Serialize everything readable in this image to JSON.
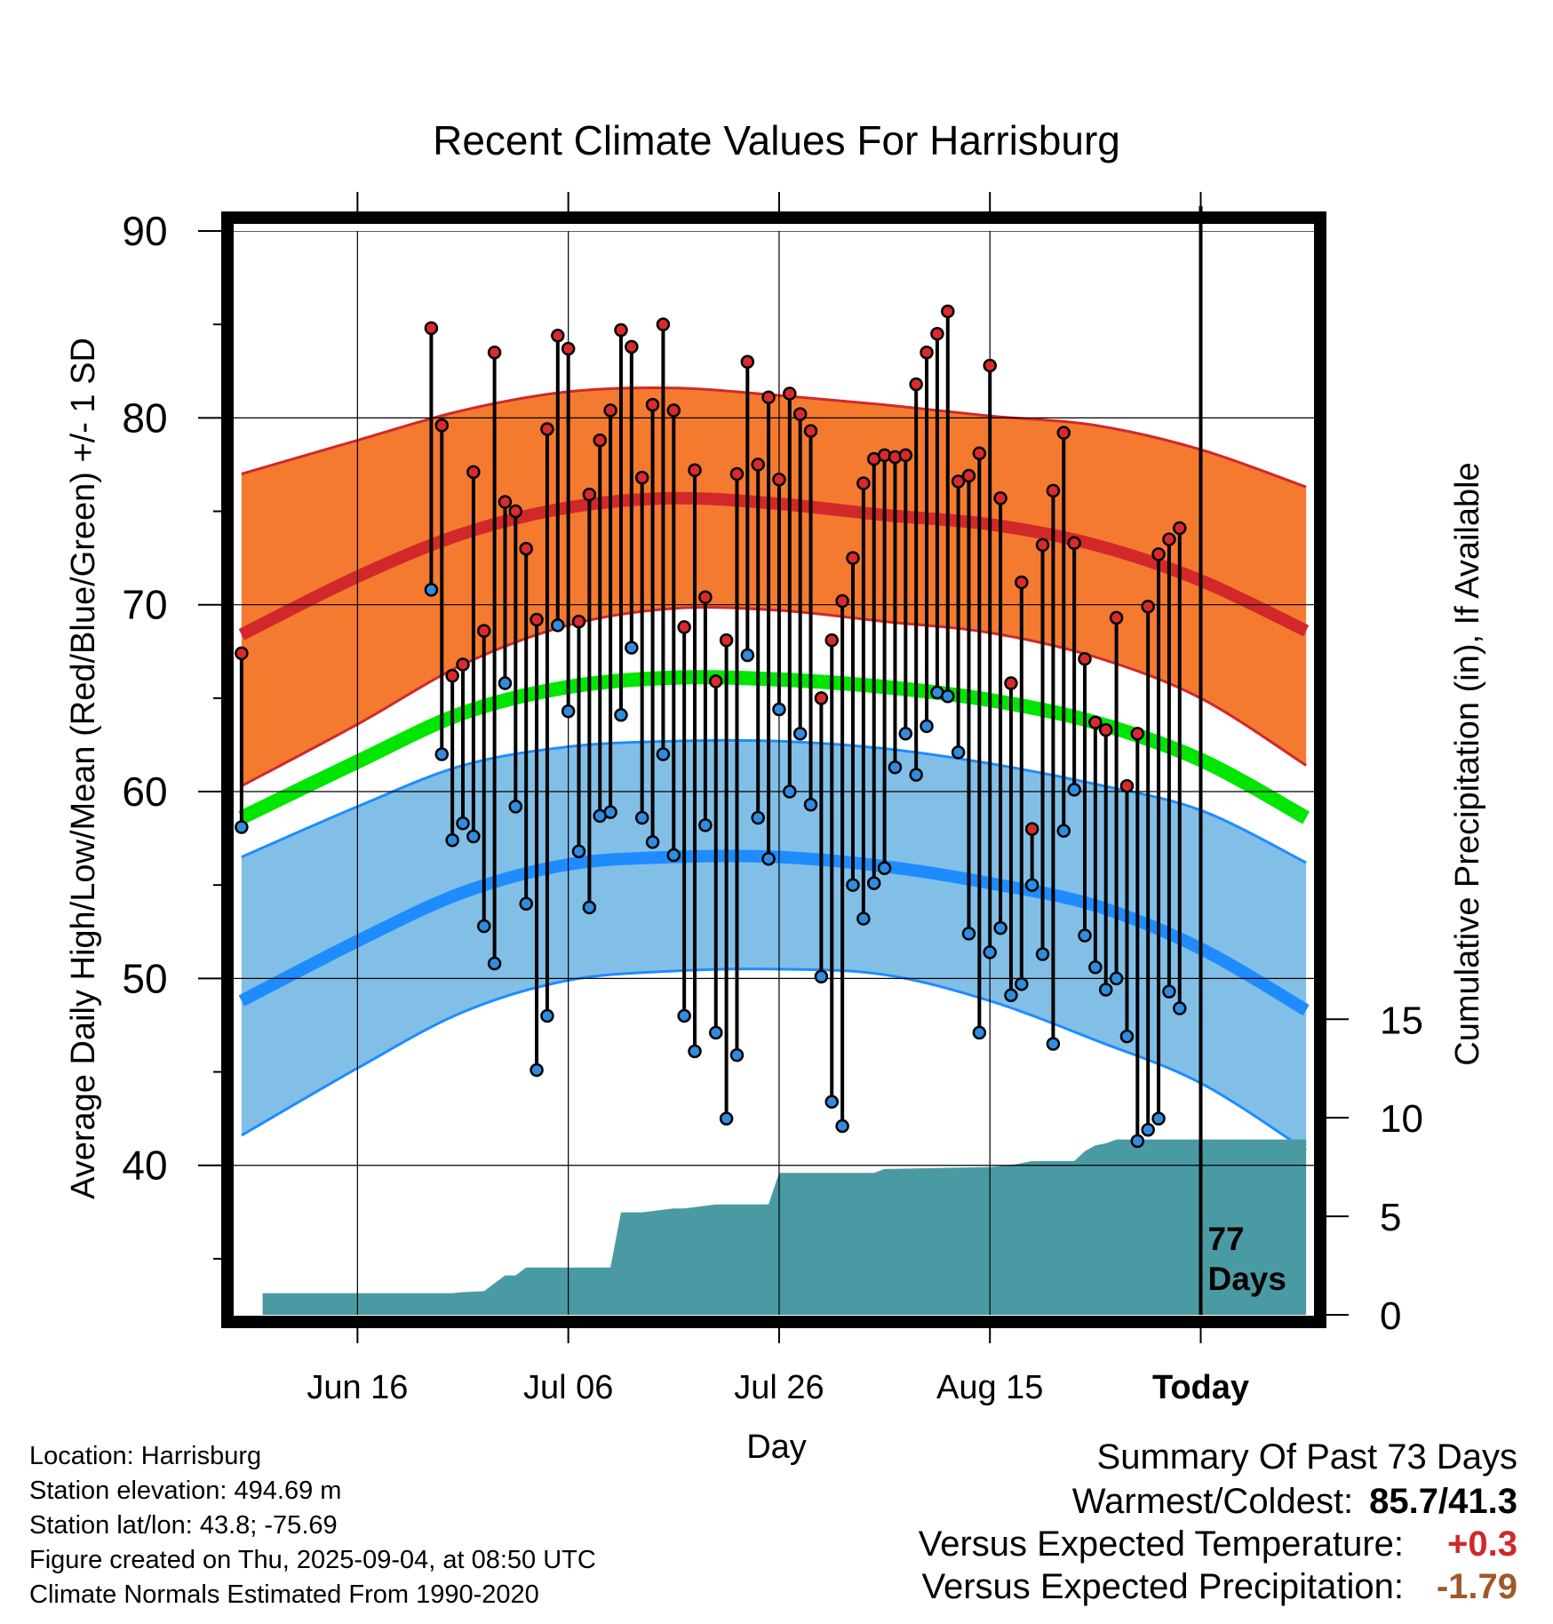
{
  "chart_data": {
    "type": "line",
    "title": "Recent Climate Values For Harrisburg",
    "xlabel": "Day",
    "ylabel": "Average Daily High/Low/Mean (Red/Blue/Green) +/- 1 SD",
    "y2label": "Cumulative Precipitation (in), If Available",
    "ylim": [
      32,
      90
    ],
    "y2lim": [
      0,
      55
    ],
    "xlim": [
      "2025-06-04",
      "2025-09-15"
    ],
    "y_ticks": [
      "40",
      "50",
      "60",
      "70",
      "80",
      "90"
    ],
    "y2_ticks": [
      "0",
      "5",
      "10",
      "15"
    ],
    "x_ticks": [
      {
        "date": "2025-06-16",
        "label": "Jun 16"
      },
      {
        "date": "2025-07-06",
        "label": "Jul 06"
      },
      {
        "date": "2025-07-26",
        "label": "Jul 26"
      },
      {
        "date": "2025-08-15",
        "label": "Aug 15"
      },
      {
        "date": "2025-09-04",
        "label": "Today"
      }
    ],
    "today_marker": {
      "date": "2025-09-04",
      "label_line1": "77",
      "label_line2": "Days"
    },
    "colors": {
      "high_band": "#f47a30",
      "high_mean_line": "#d2282a",
      "low_band": "#82bfe6",
      "low_mean_line": "#1e8cff",
      "mean_line": "#00e600",
      "precip_fill": "#4a9aa3",
      "high_dot": "#d92b2b",
      "low_dot": "#2e8de0"
    },
    "normals": {
      "dates": [
        "2025-06-05",
        "2025-06-16",
        "2025-06-26",
        "2025-07-06",
        "2025-07-16",
        "2025-07-26",
        "2025-08-05",
        "2025-08-15",
        "2025-08-25",
        "2025-09-04",
        "2025-09-14"
      ],
      "high_mean": [
        68.4,
        71.5,
        73.8,
        75.2,
        75.7,
        75.4,
        74.8,
        74.3,
        73.2,
        71.3,
        68.6
      ],
      "high_upper": [
        77.0,
        78.8,
        80.4,
        81.4,
        81.6,
        81.2,
        80.7,
        80.1,
        79.6,
        78.3,
        76.3
      ],
      "high_lower": [
        60.3,
        63.6,
        66.8,
        68.9,
        69.8,
        69.7,
        69.1,
        68.5,
        67.2,
        65.0,
        61.4
      ],
      "mean": [
        58.6,
        61.6,
        64.2,
        65.6,
        66.1,
        66.0,
        65.6,
        64.9,
        63.7,
        61.7,
        58.6
      ],
      "low_mean": [
        48.8,
        52.0,
        54.6,
        56.1,
        56.5,
        56.5,
        56.0,
        55.1,
        53.9,
        51.6,
        48.3
      ],
      "low_upper": [
        56.5,
        59.2,
        61.4,
        62.4,
        62.7,
        62.7,
        62.3,
        61.5,
        60.4,
        59.0,
        56.2
      ],
      "low_lower": [
        41.6,
        45.2,
        48.2,
        49.9,
        50.4,
        50.5,
        50.2,
        48.8,
        46.7,
        44.4,
        40.8
      ]
    },
    "observations": [
      {
        "date": "2025-06-05",
        "high": 67.4,
        "low": 58.1
      },
      {
        "date": "2025-06-23",
        "high": 84.8,
        "low": 70.8
      },
      {
        "date": "2025-06-24",
        "high": 79.6,
        "low": 62.0
      },
      {
        "date": "2025-06-25",
        "high": 66.2,
        "low": 57.4
      },
      {
        "date": "2025-06-26",
        "high": 66.8,
        "low": 58.3
      },
      {
        "date": "2025-06-27",
        "high": 77.1,
        "low": 57.6
      },
      {
        "date": "2025-06-28",
        "high": 68.6,
        "low": 52.8
      },
      {
        "date": "2025-06-29",
        "high": 83.5,
        "low": 50.8
      },
      {
        "date": "2025-06-30",
        "high": 75.5,
        "low": 65.8
      },
      {
        "date": "2025-07-01",
        "high": 75.0,
        "low": 59.2
      },
      {
        "date": "2025-07-02",
        "high": 73.0,
        "low": 54.0
      },
      {
        "date": "2025-07-03",
        "high": 69.2,
        "low": 45.1
      },
      {
        "date": "2025-07-04",
        "high": 79.4,
        "low": 48.0
      },
      {
        "date": "2025-07-05",
        "high": 84.4,
        "low": 68.9
      },
      {
        "date": "2025-07-06",
        "high": 83.7,
        "low": 64.3
      },
      {
        "date": "2025-07-07",
        "high": 69.1,
        "low": 56.8
      },
      {
        "date": "2025-07-08",
        "high": 75.9,
        "low": 53.8
      },
      {
        "date": "2025-07-09",
        "high": 78.8,
        "low": 58.7
      },
      {
        "date": "2025-07-10",
        "high": 80.4,
        "low": 58.9
      },
      {
        "date": "2025-07-11",
        "high": 84.7,
        "low": 64.1
      },
      {
        "date": "2025-07-12",
        "high": 83.8,
        "low": 67.7
      },
      {
        "date": "2025-07-13",
        "high": 76.8,
        "low": 58.6
      },
      {
        "date": "2025-07-14",
        "high": 80.7,
        "low": 57.3
      },
      {
        "date": "2025-07-15",
        "high": 85.0,
        "low": 62.0
      },
      {
        "date": "2025-07-16",
        "high": 80.4,
        "low": 56.6
      },
      {
        "date": "2025-07-17",
        "high": 68.8,
        "low": 48.0
      },
      {
        "date": "2025-07-18",
        "high": 77.2,
        "low": 46.1
      },
      {
        "date": "2025-07-19",
        "high": 70.4,
        "low": 58.2
      },
      {
        "date": "2025-07-20",
        "high": 65.9,
        "low": 47.1
      },
      {
        "date": "2025-07-21",
        "high": 68.1,
        "low": 42.5
      },
      {
        "date": "2025-07-22",
        "high": 77.0,
        "low": 45.9
      },
      {
        "date": "2025-07-23",
        "high": 83.0,
        "low": 67.3
      },
      {
        "date": "2025-07-24",
        "high": 77.5,
        "low": 58.6
      },
      {
        "date": "2025-07-25",
        "high": 81.1,
        "low": 56.4
      },
      {
        "date": "2025-07-26",
        "high": 76.7,
        "low": 64.4
      },
      {
        "date": "2025-07-27",
        "high": 81.3,
        "low": 60.0
      },
      {
        "date": "2025-07-28",
        "high": 80.2,
        "low": 63.1
      },
      {
        "date": "2025-07-29",
        "high": 79.3,
        "low": 59.3
      },
      {
        "date": "2025-07-30",
        "high": 65.0,
        "low": 50.1
      },
      {
        "date": "2025-07-31",
        "high": 68.1,
        "low": 43.4
      },
      {
        "date": "2025-08-01",
        "high": 70.2,
        "low": 42.1
      },
      {
        "date": "2025-08-02",
        "high": 72.5,
        "low": 55.0
      },
      {
        "date": "2025-08-03",
        "high": 76.5,
        "low": 53.2
      },
      {
        "date": "2025-08-04",
        "high": 77.8,
        "low": 55.1
      },
      {
        "date": "2025-08-05",
        "high": 78.0,
        "low": 55.9
      },
      {
        "date": "2025-08-06",
        "high": 77.9,
        "low": 61.3
      },
      {
        "date": "2025-08-07",
        "high": 78.0,
        "low": 63.1
      },
      {
        "date": "2025-08-08",
        "high": 81.8,
        "low": 60.9
      },
      {
        "date": "2025-08-09",
        "high": 83.5,
        "low": 63.5
      },
      {
        "date": "2025-08-10",
        "high": 84.5,
        "low": 65.3
      },
      {
        "date": "2025-08-11",
        "high": 85.7,
        "low": 65.1
      },
      {
        "date": "2025-08-12",
        "high": 76.6,
        "low": 62.1
      },
      {
        "date": "2025-08-13",
        "high": 76.9,
        "low": 52.4
      },
      {
        "date": "2025-08-14",
        "high": 78.1,
        "low": 47.1
      },
      {
        "date": "2025-08-15",
        "high": 82.8,
        "low": 51.4
      },
      {
        "date": "2025-08-16",
        "high": 75.7,
        "low": 52.7
      },
      {
        "date": "2025-08-17",
        "high": 65.8,
        "low": 49.1
      },
      {
        "date": "2025-08-18",
        "high": 71.2,
        "low": 49.7
      },
      {
        "date": "2025-08-19",
        "high": 58.0,
        "low": 55.0
      },
      {
        "date": "2025-08-20",
        "high": 73.2,
        "low": 51.3
      },
      {
        "date": "2025-08-21",
        "high": 76.1,
        "low": 46.5
      },
      {
        "date": "2025-08-22",
        "high": 79.2,
        "low": 57.9
      },
      {
        "date": "2025-08-23",
        "high": 73.3,
        "low": 60.1
      },
      {
        "date": "2025-08-24",
        "high": 67.1,
        "low": 52.3
      },
      {
        "date": "2025-08-25",
        "high": 63.7,
        "low": 50.6
      },
      {
        "date": "2025-08-26",
        "high": 63.3,
        "low": 49.4
      },
      {
        "date": "2025-08-27",
        "high": 69.3,
        "low": 50.0
      },
      {
        "date": "2025-08-28",
        "high": 60.3,
        "low": 46.9
      },
      {
        "date": "2025-08-29",
        "high": 63.1,
        "low": 41.3
      },
      {
        "date": "2025-08-30",
        "high": 69.9,
        "low": 41.9
      },
      {
        "date": "2025-08-31",
        "high": 72.7,
        "low": 42.5
      },
      {
        "date": "2025-09-01",
        "high": 73.5,
        "low": 49.3
      },
      {
        "date": "2025-09-02",
        "high": 74.1,
        "low": 48.4
      }
    ],
    "precipitation": {
      "dates": [
        "2025-06-04",
        "2025-06-07",
        "2025-06-07",
        "2025-06-25",
        "2025-06-26",
        "2025-06-28",
        "2025-06-30",
        "2025-07-01",
        "2025-07-02",
        "2025-07-04",
        "2025-07-10",
        "2025-07-11",
        "2025-07-12",
        "2025-07-13",
        "2025-07-16",
        "2025-07-17",
        "2025-07-20",
        "2025-07-23",
        "2025-07-25",
        "2025-07-26",
        "2025-07-29",
        "2025-08-04",
        "2025-08-05",
        "2025-08-15",
        "2025-08-17",
        "2025-08-19",
        "2025-08-23",
        "2025-08-24",
        "2025-08-25",
        "2025-08-26",
        "2025-08-27",
        "2025-08-28",
        "2025-09-04",
        "2025-09-14"
      ],
      "values": [
        0,
        0,
        1.1,
        1.1,
        1.15,
        1.2,
        2.0,
        2.0,
        2.4,
        2.4,
        2.4,
        5.2,
        5.2,
        5.2,
        5.4,
        5.4,
        5.6,
        5.6,
        5.6,
        7.2,
        7.2,
        7.2,
        7.4,
        7.5,
        7.6,
        7.8,
        7.8,
        8.3,
        8.6,
        8.7,
        8.9,
        8.9,
        8.9,
        8.9
      ]
    }
  },
  "footer_left": {
    "location": "Location: Harrisburg",
    "elevation": "Station elevation: 494.69 m",
    "latlon": "Station lat/lon: 43.8; -75.69",
    "created": "Figure created on Thu, 2025-09-04, at 08:50 UTC",
    "normals": "Climate Normals Estimated From 1990-2020"
  },
  "summary": {
    "heading": "Summary Of Past 73 Days",
    "warm_cold_label": "Warmest/Coldest:",
    "warm_cold_value": "85.7/41.3",
    "temp_label": "Versus Expected Temperature:",
    "temp_value": "+0.3",
    "temp_color": "#d0282a",
    "precip_label": "Versus Expected Precipitation:",
    "precip_value": "-1.79",
    "precip_color": "#a0582a"
  }
}
